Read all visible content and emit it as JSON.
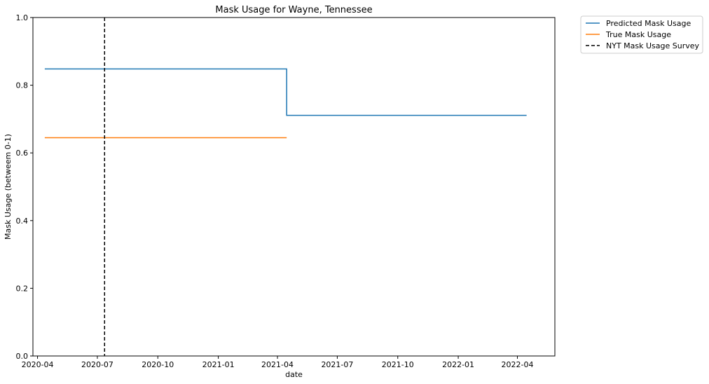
{
  "chart_data": {
    "type": "line",
    "title": "Mask Usage for Wayne, Tennessee",
    "xlabel": "date",
    "ylabel": "Mask Usage (betweem 0-1)",
    "xlim": [
      "2020-03-25",
      "2022-05-28"
    ],
    "ylim": [
      0,
      1
    ],
    "x_ticks": [
      "2020-04-01",
      "2020-07-01",
      "2020-10-01",
      "2021-01-01",
      "2021-04-01",
      "2021-07-01",
      "2021-10-01",
      "2022-01-01",
      "2022-04-01"
    ],
    "x_tick_labels": [
      "2020-04",
      "2020-07",
      "2020-10",
      "2021-01",
      "2021-04",
      "2021-07",
      "2021-10",
      "2022-01",
      "2022-04"
    ],
    "y_ticks": [
      0.0,
      0.2,
      0.4,
      0.6,
      0.8,
      1.0
    ],
    "y_tick_labels": [
      "0.0",
      "0.2",
      "0.4",
      "0.6",
      "0.8",
      "1.0"
    ],
    "grid": false,
    "legend_position": "outside-top-right",
    "series": [
      {
        "name": "Predicted Mask Usage",
        "color": "#1f77b4",
        "style": "solid",
        "drawstyle": "steps-post",
        "points": [
          {
            "x": "2020-04-12",
            "y": 0.848
          },
          {
            "x": "2021-04-15",
            "y": 0.711
          },
          {
            "x": "2022-04-15",
            "y": 0.711
          }
        ]
      },
      {
        "name": "True Mask Usage",
        "color": "#ff7f0e",
        "style": "solid",
        "drawstyle": "steps-post",
        "points": [
          {
            "x": "2020-04-12",
            "y": 0.645
          },
          {
            "x": "2021-04-15",
            "y": 0.645
          }
        ]
      }
    ],
    "vlines": [
      {
        "name": "NYT Mask Usage Survey",
        "x": "2020-07-12",
        "color": "#000000",
        "style": "dashed"
      }
    ]
  }
}
